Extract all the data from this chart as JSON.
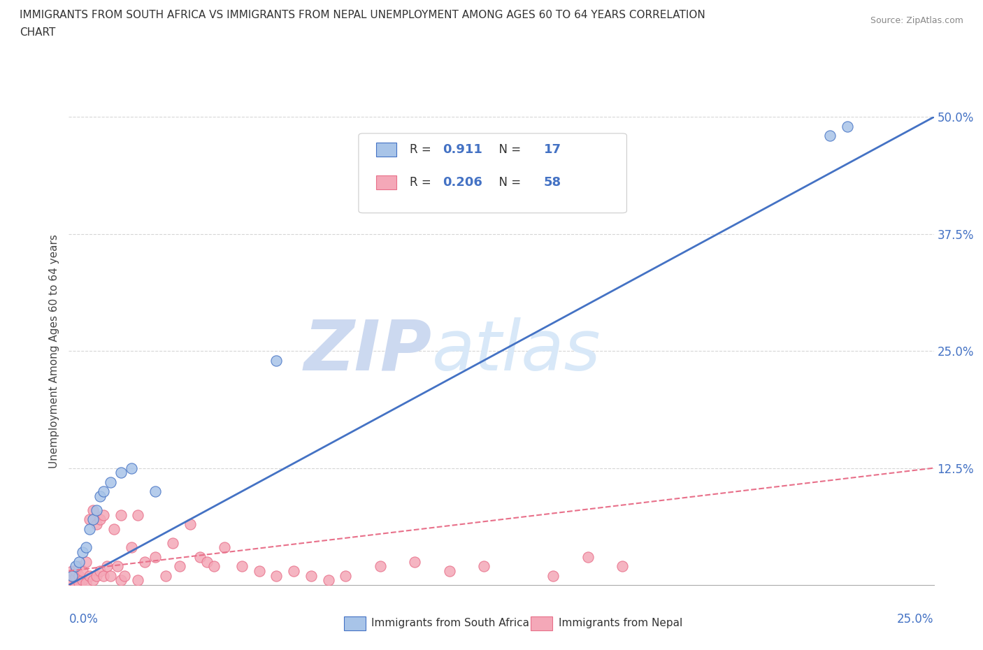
{
  "title_line1": "IMMIGRANTS FROM SOUTH AFRICA VS IMMIGRANTS FROM NEPAL UNEMPLOYMENT AMONG AGES 60 TO 64 YEARS CORRELATION",
  "title_line2": "CHART",
  "source": "Source: ZipAtlas.com",
  "ylabel_label": "Unemployment Among Ages 60 to 64 years",
  "legend_label_blue": "Immigrants from South Africa",
  "legend_label_pink": "Immigrants from Nepal",
  "R_blue": "0.911",
  "N_blue": "17",
  "R_pink": "0.206",
  "N_pink": "58",
  "color_blue_fill": "#a8c4e8",
  "color_blue_edge": "#4472c4",
  "color_pink_fill": "#f4a8b8",
  "color_pink_edge": "#e8708a",
  "color_line_blue": "#4472c4",
  "color_line_pink": "#e8708a",
  "watermark_zip": "ZIP",
  "watermark_atlas": "atlas",
  "watermark_color": "#ccd9f0",
  "background": "#ffffff",
  "blue_points_x": [
    0.001,
    0.002,
    0.003,
    0.004,
    0.005,
    0.006,
    0.007,
    0.008,
    0.009,
    0.01,
    0.012,
    0.015,
    0.018,
    0.025,
    0.06,
    0.22,
    0.225
  ],
  "blue_points_y": [
    0.01,
    0.02,
    0.025,
    0.035,
    0.04,
    0.06,
    0.07,
    0.08,
    0.095,
    0.1,
    0.11,
    0.12,
    0.125,
    0.1,
    0.24,
    0.48,
    0.49
  ],
  "pink_points_x": [
    0.001,
    0.001,
    0.001,
    0.001,
    0.002,
    0.002,
    0.002,
    0.003,
    0.003,
    0.003,
    0.004,
    0.004,
    0.005,
    0.005,
    0.006,
    0.006,
    0.007,
    0.007,
    0.008,
    0.008,
    0.009,
    0.009,
    0.01,
    0.01,
    0.011,
    0.012,
    0.013,
    0.014,
    0.015,
    0.015,
    0.016,
    0.018,
    0.02,
    0.02,
    0.022,
    0.025,
    0.028,
    0.03,
    0.032,
    0.035,
    0.038,
    0.04,
    0.042,
    0.045,
    0.05,
    0.055,
    0.06,
    0.065,
    0.07,
    0.075,
    0.08,
    0.09,
    0.1,
    0.11,
    0.12,
    0.14,
    0.15,
    0.16
  ],
  "pink_points_y": [
    0.001,
    0.005,
    0.01,
    0.015,
    0.001,
    0.008,
    0.015,
    0.002,
    0.01,
    0.02,
    0.005,
    0.015,
    0.002,
    0.025,
    0.01,
    0.07,
    0.005,
    0.08,
    0.01,
    0.065,
    0.015,
    0.07,
    0.01,
    0.075,
    0.02,
    0.01,
    0.06,
    0.02,
    0.075,
    0.005,
    0.01,
    0.04,
    0.005,
    0.075,
    0.025,
    0.03,
    0.01,
    0.045,
    0.02,
    0.065,
    0.03,
    0.025,
    0.02,
    0.04,
    0.02,
    0.015,
    0.01,
    0.015,
    0.01,
    0.005,
    0.01,
    0.02,
    0.025,
    0.015,
    0.02,
    0.01,
    0.03,
    0.02
  ],
  "blue_trend_x": [
    0.0,
    0.25
  ],
  "blue_trend_y": [
    0.0,
    0.5
  ],
  "pink_trend_x": [
    0.0,
    0.25
  ],
  "pink_trend_y": [
    0.015,
    0.125
  ],
  "xlim": [
    0.0,
    0.25
  ],
  "ylim": [
    0.0,
    0.5
  ],
  "ytick_vals": [
    0.125,
    0.25,
    0.375,
    0.5
  ],
  "ytick_labels": [
    "12.5%",
    "25.0%",
    "37.5%",
    "50.0%"
  ]
}
